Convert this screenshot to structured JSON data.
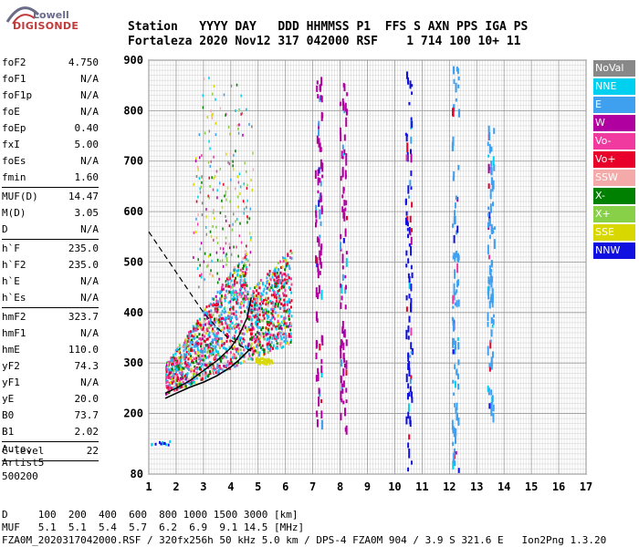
{
  "logo": {
    "top": "Lowell",
    "bottom": "DIGISONDE"
  },
  "header": {
    "line1": "Station   YYYY DAY   DDD HHMMSS P1  FFS S AXN PPS IGA PS",
    "line2": "Fortaleza 2020 Nov12 317 042000 RSF    1 714 100 10+ 11"
  },
  "params": [
    [
      {
        "label": "foF2",
        "value": "4.750"
      },
      {
        "label": "foF1",
        "value": "N/A"
      },
      {
        "label": "foF1p",
        "value": "N/A"
      },
      {
        "label": "foE",
        "value": "N/A"
      },
      {
        "label": "foEp",
        "value": "0.40"
      },
      {
        "label": "fxI",
        "value": "5.00"
      },
      {
        "label": "foEs",
        "value": "N/A"
      },
      {
        "label": "fmin",
        "value": "1.60"
      }
    ],
    [
      {
        "label": "MUF(D)",
        "value": "14.47"
      },
      {
        "label": "M(D)",
        "value": "3.05"
      },
      {
        "label": "D",
        "value": "N/A"
      }
    ],
    [
      {
        "label": "h`F",
        "value": "235.0"
      },
      {
        "label": "h`F2",
        "value": "235.0"
      },
      {
        "label": "h`E",
        "value": "N/A"
      },
      {
        "label": "h`Es",
        "value": "N/A"
      }
    ],
    [
      {
        "label": "hmF2",
        "value": "323.7"
      },
      {
        "label": "hmF1",
        "value": "N/A"
      },
      {
        "label": "hmE",
        "value": "110.0"
      },
      {
        "label": "yF2",
        "value": "74.3"
      },
      {
        "label": "yF1",
        "value": "N/A"
      },
      {
        "label": "yE",
        "value": "20.0"
      },
      {
        "label": "B0",
        "value": "73.7"
      },
      {
        "label": "B1",
        "value": "2.02"
      }
    ],
    [
      {
        "label": "C-level",
        "value": "22"
      }
    ]
  ],
  "auto": [
    "Auto:",
    "Artist5",
    "500200"
  ],
  "legend": [
    {
      "label": "NoVal",
      "color": "#888888"
    },
    {
      "label": "NNE",
      "color": "#00d0f0"
    },
    {
      "label": "E",
      "color": "#3fa0f0"
    },
    {
      "label": "W",
      "color": "#b000a0"
    },
    {
      "label": "Vo-",
      "color": "#f03aa0"
    },
    {
      "label": "Vo+",
      "color": "#e8002a"
    },
    {
      "label": "SSW",
      "color": "#f5aaaa"
    },
    {
      "label": "X-",
      "color": "#008000"
    },
    {
      "label": "X+",
      "color": "#88d048"
    },
    {
      "label": "SSE",
      "color": "#d8d800"
    },
    {
      "label": "NNW",
      "color": "#1010e0"
    }
  ],
  "footer": {
    "line1": "D     100  200  400  600  800 1000 1500 3000 [km]",
    "line2": "MUF   5.1  5.1  5.4  5.7  6.2  6.9  9.1 14.5 [MHz]",
    "line3": "FZA0M_2020317042000.RSF / 320fx256h 50 kHz 5.0 km / DPS-4 FZA0M 904 / 3.9 S 321.6 E   Ion2Png 1.3.20"
  },
  "chart_data": {
    "type": "scatter",
    "x_ticks": [
      1,
      2,
      3,
      4,
      5,
      6,
      7,
      8,
      9,
      10,
      11,
      12,
      13,
      14,
      15,
      16,
      17
    ],
    "y_ticks": [
      80,
      200,
      300,
      400,
      500,
      600,
      700,
      800,
      900
    ],
    "xlim": [
      1,
      17
    ],
    "ylim": [
      80,
      900
    ],
    "grid": true,
    "trace_profile": [
      [
        1.6,
        230
      ],
      [
        2.0,
        240
      ],
      [
        2.5,
        252
      ],
      [
        3.0,
        262
      ],
      [
        3.5,
        275
      ],
      [
        4.0,
        292
      ],
      [
        4.3,
        306
      ],
      [
        4.6,
        322
      ],
      [
        4.75,
        330
      ]
    ],
    "modeled_profile": [
      [
        1.6,
        240
      ],
      [
        2.0,
        250
      ],
      [
        2.5,
        265
      ],
      [
        3.0,
        285
      ],
      [
        3.5,
        305
      ],
      [
        4.0,
        330
      ],
      [
        4.3,
        355
      ],
      [
        4.6,
        390
      ],
      [
        4.75,
        430
      ]
    ],
    "extended_profile": [
      [
        1.0,
        560
      ],
      [
        1.5,
        520
      ],
      [
        2.0,
        480
      ],
      [
        2.5,
        440
      ],
      [
        3.0,
        400
      ],
      [
        3.5,
        370
      ],
      [
        4.0,
        345
      ],
      [
        4.5,
        330
      ],
      [
        4.75,
        324
      ]
    ],
    "vertical_traces": [
      {
        "x": 10.5,
        "y": [
          90,
          890
        ],
        "color": "#1010e0"
      },
      {
        "x": 12.2,
        "y": [
          90,
          890
        ],
        "color": "#3fa0f0"
      },
      {
        "x": 13.5,
        "y": [
          200,
          780
        ],
        "color": "#3fa0f0"
      },
      {
        "x": 7.2,
        "y": [
          180,
          870
        ],
        "color": "#b000a0"
      },
      {
        "x": 8.1,
        "y": [
          170,
          860
        ],
        "color": "#b000a0"
      }
    ]
  }
}
